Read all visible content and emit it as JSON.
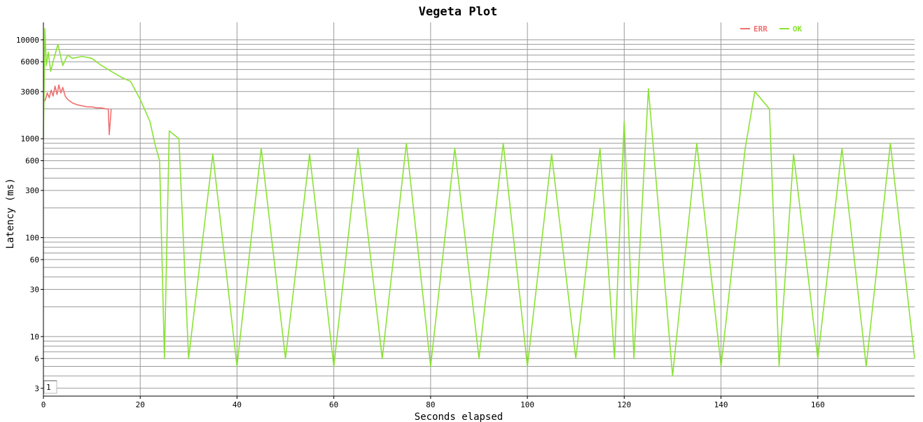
{
  "chart_data": {
    "type": "line",
    "title": "Vegeta Plot",
    "xlabel": "Seconds elapsed",
    "ylabel": "Latency (ms)",
    "xlim": [
      0,
      180
    ],
    "ylim": [
      2.5,
      15000
    ],
    "yscale": "log",
    "grid": true,
    "legend_position": "top-right",
    "x_ticks": [
      0,
      20,
      40,
      60,
      80,
      100,
      120,
      140,
      160
    ],
    "y_tick_labels": [
      3,
      6,
      10,
      30,
      60,
      100,
      300,
      600,
      1000,
      3000,
      6000,
      10000
    ],
    "range_selector_label": "1",
    "series": [
      {
        "name": "ERR",
        "color": "#f07070",
        "x": [
          0.3,
          0.8,
          1.2,
          1.6,
          2.0,
          2.4,
          2.8,
          3.2,
          3.6,
          4.0,
          4.5,
          5.0,
          6,
          7,
          8,
          9,
          10,
          11,
          12,
          13,
          13.4,
          13.6,
          14
        ],
        "y": [
          2400,
          2900,
          2600,
          3100,
          2700,
          3400,
          2800,
          3500,
          2900,
          3300,
          2700,
          2500,
          2300,
          2200,
          2150,
          2100,
          2100,
          2050,
          2050,
          2000,
          2000,
          1100,
          2000
        ]
      },
      {
        "name": "OK",
        "color": "#8ae234",
        "x": [
          0,
          0.3,
          0.6,
          1,
          1.5,
          2,
          3,
          4,
          5,
          6,
          8,
          10,
          12,
          14,
          16,
          18,
          20,
          22,
          23,
          24,
          25,
          26,
          28,
          30,
          35,
          40,
          45,
          50,
          55,
          60,
          65,
          70,
          75,
          80,
          85,
          90,
          95,
          100,
          105,
          110,
          115,
          118,
          120,
          122,
          125,
          130,
          135,
          140,
          145,
          147,
          150,
          152,
          155,
          160,
          165,
          170,
          175,
          180
        ],
        "y": [
          1000,
          13000,
          5500,
          7500,
          4800,
          6000,
          9000,
          5500,
          7000,
          6500,
          6800,
          6500,
          5500,
          4800,
          4200,
          3800,
          2500,
          1500,
          900,
          600,
          6,
          1200,
          1000,
          6,
          700,
          5,
          800,
          6,
          700,
          5,
          800,
          6,
          900,
          5,
          800,
          6,
          900,
          5,
          700,
          6,
          800,
          6,
          1500,
          6,
          3200,
          4,
          900,
          5,
          800,
          3000,
          2000,
          5,
          700,
          6,
          800,
          5,
          900,
          6
        ]
      }
    ]
  }
}
